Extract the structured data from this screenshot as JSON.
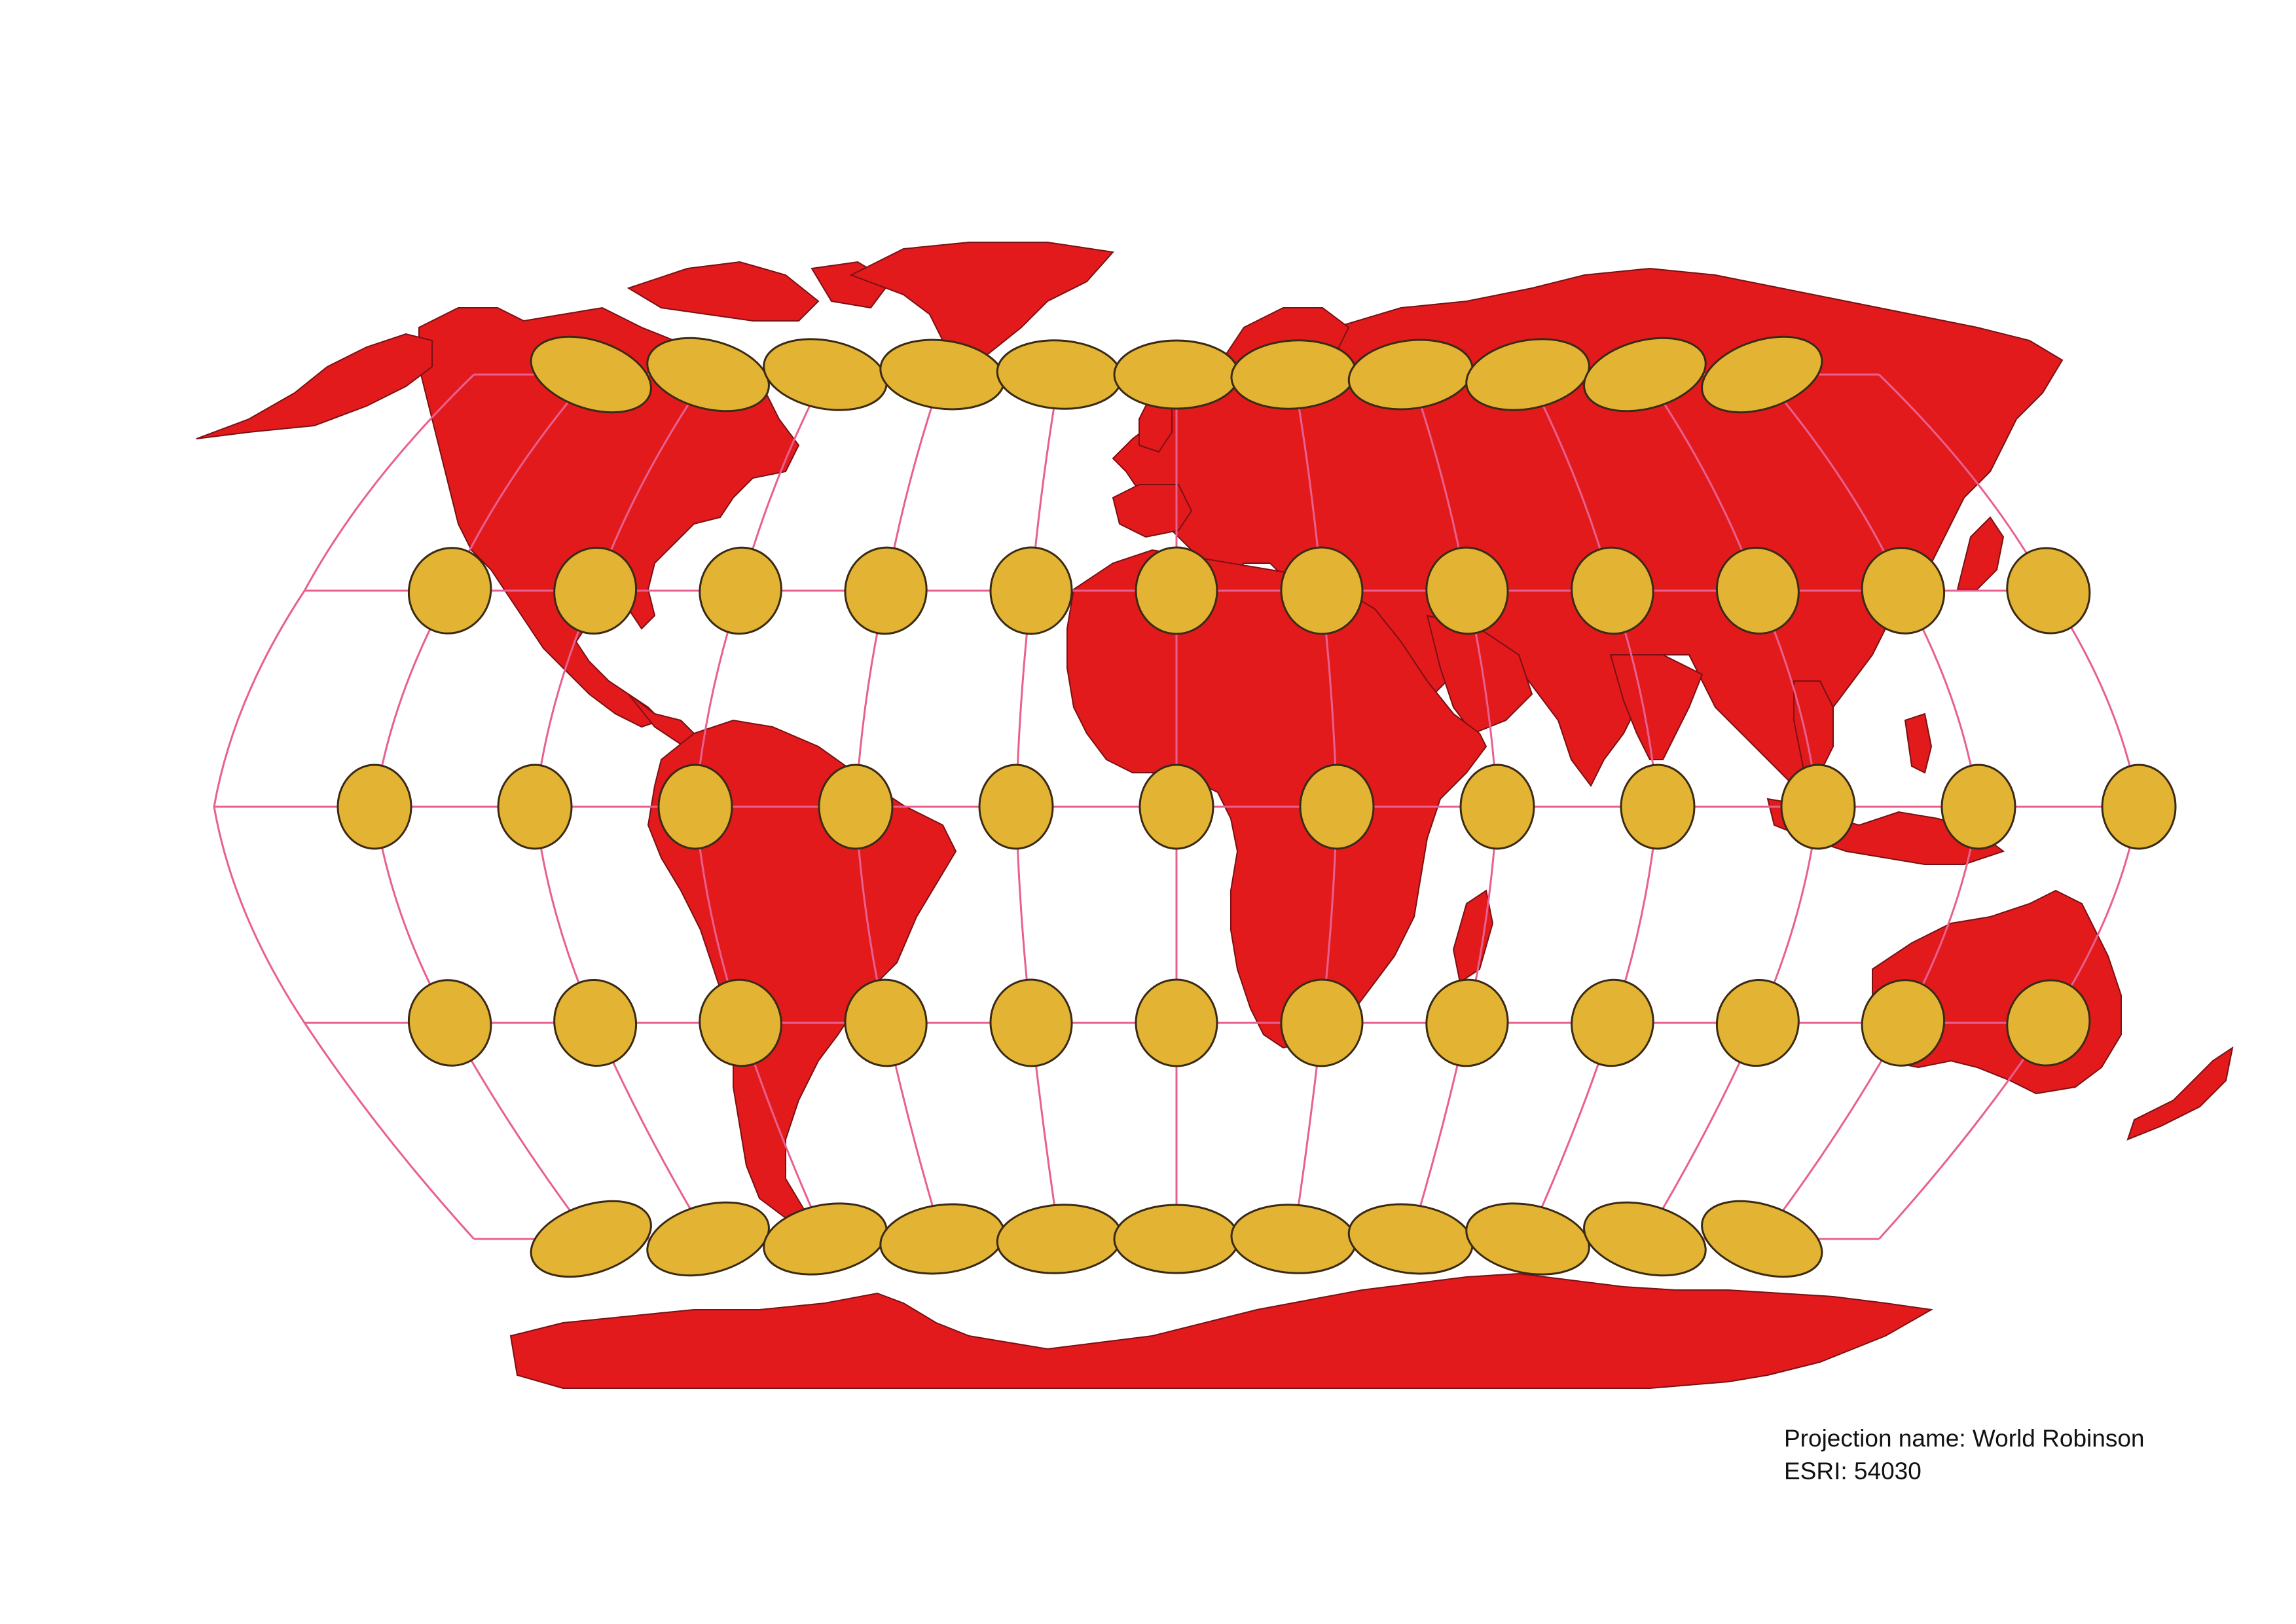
{
  "map": {
    "projection_caption": "Projection name: World Robinson",
    "esri_caption": "ESRI: 54030",
    "colors": {
      "land": "#e31a1c",
      "border": "#7a1014",
      "graticule": "#e8608f",
      "ellipse_fill": "#e3b434",
      "ellipse_stroke": "#3a2a14",
      "background": "#ffffff"
    },
    "indicatrix_grid": {
      "latitudes_deg": [
        60,
        30,
        0,
        -30,
        -60
      ],
      "longitudes_deg": [
        -150,
        -120,
        -90,
        -60,
        -30,
        0,
        30,
        60,
        90,
        120,
        150,
        180
      ]
    }
  }
}
